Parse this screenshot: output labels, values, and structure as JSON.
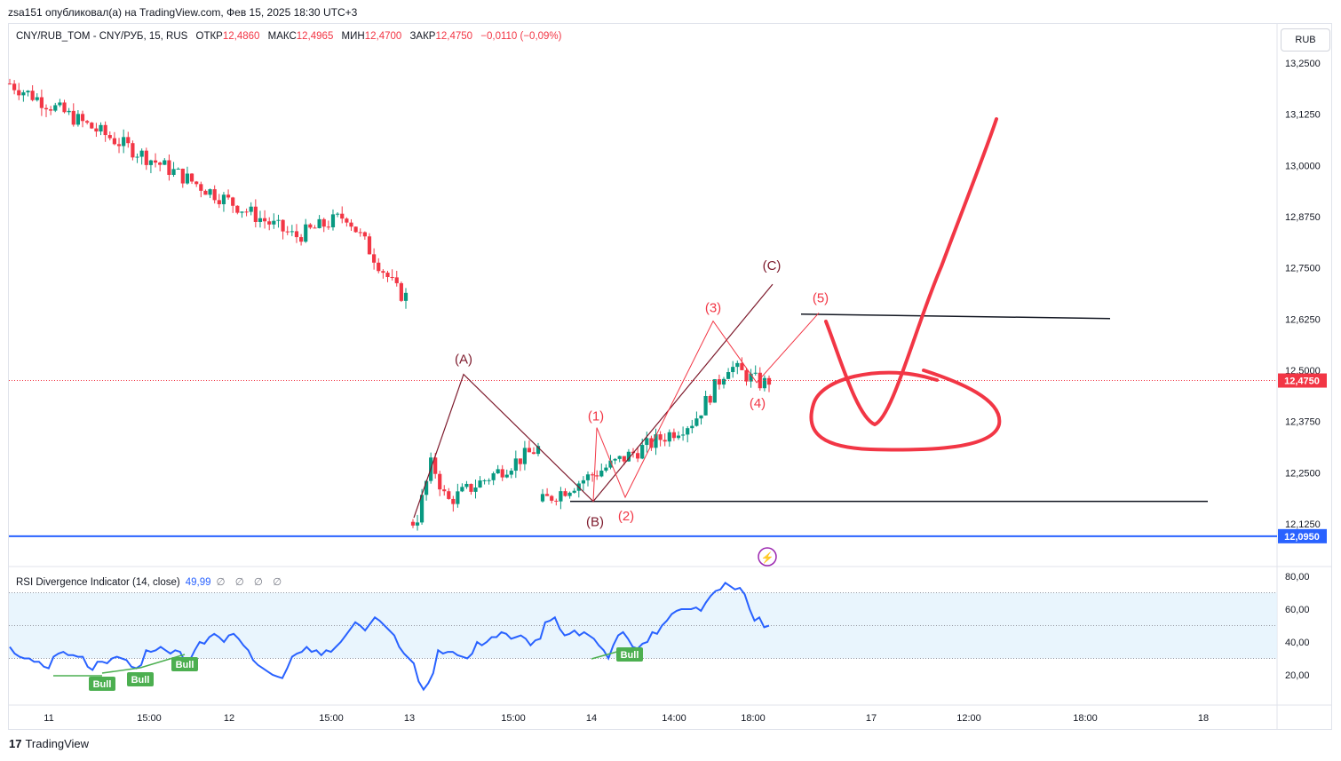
{
  "header": {
    "published_text": "zsa151 опубликовал(а) на TradingView.com, Фев 15, 2025 18:30 UTC+3"
  },
  "legend": {
    "symbol": "CNY/RUB_TOM - CNY/РУБ, 15, RUS",
    "open_label": "ОТКР",
    "open": "12,4860",
    "high_label": "МАКС",
    "high": "12,4965",
    "low_label": "МИН",
    "low": "12,4700",
    "close_label": "ЗАКР",
    "close": "12,4750",
    "change": "−0,0110 (−0,09%)"
  },
  "currency_button": "RUB",
  "rsi_legend": {
    "name": "RSI Divergence Indicator (14, close)",
    "value": "49,99",
    "extras": "∅ ∅ ∅ ∅"
  },
  "footer": {
    "brand": "TradingView",
    "logo": "17"
  },
  "colors": {
    "up": "#089981",
    "down": "#f23645",
    "rsi": "#2962ff",
    "annotation": "#f23645",
    "wave_dark": "#7d1a2c",
    "hline_blue": "#2962ff",
    "bull": "#4caf50"
  },
  "chart_data": [
    {
      "type": "candlestick",
      "title": "CNY/RUB_TOM - CNY/РУБ, 15, RUS",
      "ylim": [
        12.05,
        13.3
      ],
      "y_ticks": [
        "13,2500",
        "13,1250",
        "13,0000",
        "12,8750",
        "12,7500",
        "12,6250",
        "12,5000",
        "12,3750",
        "12,2500",
        "12,1250"
      ],
      "x_ticks": [
        "11",
        "15:00",
        "12",
        "15:00",
        "13",
        "15:00",
        "14",
        "14:00",
        "18:00",
        "17",
        "12:00",
        "18:00",
        "18"
      ],
      "last_price_label": "12,4750",
      "horizontal_line_label": "12,0950",
      "candle_segments": [
        {
          "day": "11-12",
          "start": 13.2,
          "end": 12.68
        },
        {
          "day": "13",
          "start": 12.13,
          "end": 12.31
        },
        {
          "day": "14",
          "start": 12.18,
          "end": 12.475
        }
      ],
      "wave_labels": [
        "(A)",
        "(B)",
        "(C)",
        "(1)",
        "(2)",
        "(3)",
        "(4)",
        "(5)"
      ],
      "wave_points_dark": [
        {
          "label": "",
          "price": 12.14
        },
        {
          "label": "(A)",
          "price": 12.49
        },
        {
          "label": "(B)",
          "price": 12.18
        },
        {
          "label": "(C)",
          "price": 12.71
        }
      ],
      "wave_points_red": [
        {
          "label": "(1)",
          "price": 12.36
        },
        {
          "label": "(2)",
          "price": 12.19
        },
        {
          "label": "(3)",
          "price": 12.62
        },
        {
          "label": "(4)",
          "price": 12.47
        },
        {
          "label": "(5)",
          "price": 12.64
        }
      ],
      "levels": [
        12.635,
        12.18
      ]
    },
    {
      "type": "line",
      "title": "RSI Divergence Indicator (14, close)",
      "ylim": [
        10,
        85
      ],
      "y_ticks": [
        "80,00",
        "60,00",
        "40,00",
        "20,00"
      ],
      "band": [
        30,
        70
      ],
      "mid": 50,
      "series": [
        {
          "values": [
            37,
            33,
            31,
            30,
            30,
            28,
            28,
            25,
            24,
            31,
            33,
            34,
            32,
            32,
            31,
            31,
            25,
            23,
            28,
            28,
            27,
            30,
            31,
            30,
            29,
            25,
            24,
            26,
            35,
            34,
            35,
            37,
            35,
            33,
            35,
            34,
            28,
            29,
            35,
            40,
            39,
            43,
            45,
            43,
            40,
            44,
            45,
            42,
            38,
            35,
            29,
            26,
            24,
            22,
            20,
            19,
            18,
            24,
            31,
            33,
            34,
            37,
            34,
            35,
            32,
            35,
            34,
            37,
            40,
            44,
            48,
            52,
            50,
            47,
            51,
            55,
            53,
            50,
            47,
            44,
            37,
            33,
            30,
            27,
            16,
            11,
            15,
            21,
            35,
            33,
            34,
            34,
            32,
            31,
            30,
            33,
            40,
            38,
            40,
            43,
            43,
            46,
            45,
            42,
            43,
            44,
            42,
            38,
            41,
            42,
            52,
            53,
            55,
            48,
            44,
            45,
            47,
            44,
            46,
            44,
            42,
            38,
            35,
            30,
            38,
            44,
            46,
            42,
            37,
            36,
            39,
            40,
            46,
            45,
            50,
            53,
            57,
            59,
            60,
            60,
            60,
            61,
            59,
            64,
            68,
            71,
            72,
            76,
            74,
            72,
            73,
            69,
            60,
            53,
            55,
            49,
            50
          ]
        }
      ],
      "bull_labels": [
        "Bull",
        "Bull",
        "Bull",
        "Bull"
      ]
    }
  ]
}
